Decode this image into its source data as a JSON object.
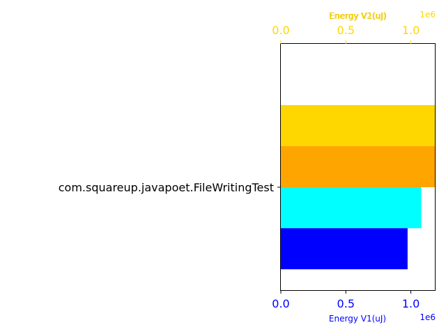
{
  "chart_data": {
    "type": "bar",
    "orientation": "horizontal",
    "categories": [
      "com.squareup.javapoet.FileWritingTest"
    ],
    "axes": {
      "bottom": {
        "label": "Energy V1(uJ)",
        "ticks": [
          "0.0",
          "0.5",
          "1.0"
        ],
        "tick_values": [
          0,
          500000,
          1000000
        ],
        "offset_text": "1e6",
        "color": "#0000ff",
        "range": [
          0,
          1190000
        ]
      },
      "top": {
        "labels_overlapping": [
          "Energy V2(uJ)",
          "Energy V1(uJ)"
        ],
        "ticks": [
          "0.0",
          "0.5",
          "1.0"
        ],
        "tick_values": [
          0,
          500000,
          1000000
        ],
        "offset_text": "1e6",
        "color": "#ffd700",
        "range": [
          0,
          1190000
        ]
      }
    },
    "series": [
      {
        "axis": "bottom",
        "color": "#0000ff",
        "value": 975000
      },
      {
        "axis": "bottom",
        "color": "#00ffff",
        "value": 1080000
      },
      {
        "axis": "top",
        "color": "#ffa500",
        "value": 1190000
      },
      {
        "axis": "top",
        "color": "#ffd700",
        "value": 1190000
      }
    ],
    "grid": false,
    "legend": "none"
  }
}
